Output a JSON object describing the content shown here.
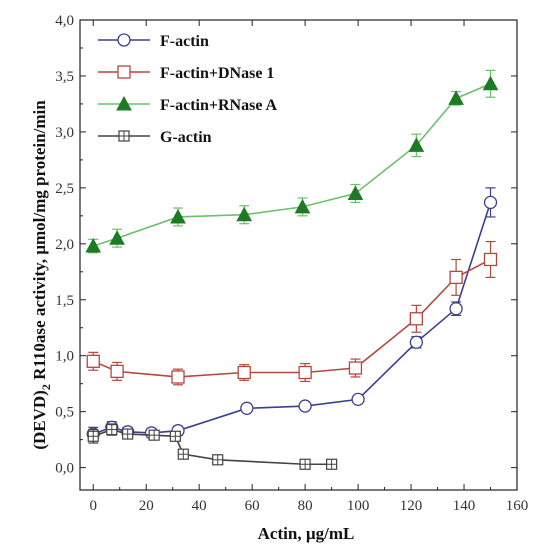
{
  "chart_data": {
    "type": "line",
    "title": "",
    "xlabel": "Actin, µg/mL",
    "ylabel_main": "(DEVD)",
    "ylabel_sub": "2",
    "ylabel_rest": " R110ase activity, µmol/mg protein/min",
    "xlim": [
      -5,
      160
    ],
    "ylim": [
      -0.2,
      4.0
    ],
    "x_ticks": [
      "0",
      "20",
      "40",
      "60",
      "80",
      "100",
      "120",
      "140",
      "160"
    ],
    "y_ticks": [
      "0,0",
      "0,5",
      "1,0",
      "1,5",
      "2,0",
      "2,5",
      "3,0",
      "3,5",
      "4,0"
    ],
    "x_tick_values": [
      0,
      20,
      40,
      60,
      80,
      100,
      120,
      140,
      160
    ],
    "y_tick_values": [
      0,
      0.5,
      1.0,
      1.5,
      2.0,
      2.5,
      3.0,
      3.5,
      4.0
    ],
    "legend_position": "top-left",
    "series": [
      {
        "name": "F-actin",
        "color": "#3a3f8f",
        "marker": "circle-open",
        "x": [
          0,
          7,
          13,
          22,
          32,
          58,
          80,
          100,
          122,
          137,
          150
        ],
        "y": [
          0.3,
          0.36,
          0.32,
          0.31,
          0.33,
          0.53,
          0.55,
          0.61,
          1.12,
          1.42,
          2.37
        ],
        "err": [
          0.06,
          0.05,
          0.04,
          0.04,
          0.04,
          0.03,
          0.03,
          0.03,
          0.05,
          0.06,
          0.13
        ]
      },
      {
        "name": "F-actin+DNase 1",
        "color": "#b5473f",
        "marker": "square-open",
        "x": [
          0,
          9,
          32,
          57,
          80,
          99,
          122,
          137,
          150
        ],
        "y": [
          0.95,
          0.86,
          0.81,
          0.85,
          0.85,
          0.89,
          1.33,
          1.7,
          1.86
        ],
        "err": [
          0.08,
          0.08,
          0.07,
          0.07,
          0.08,
          0.08,
          0.12,
          0.16,
          0.16
        ]
      },
      {
        "name": "F-actin+RNase A",
        "color": "#6cc16a",
        "marker": "triangle-filled",
        "x": [
          0,
          9,
          32,
          57,
          79,
          99,
          122,
          137,
          150
        ],
        "y": [
          1.98,
          2.05,
          2.24,
          2.26,
          2.33,
          2.45,
          2.88,
          3.3,
          3.43
        ],
        "err": [
          0.06,
          0.08,
          0.08,
          0.08,
          0.08,
          0.08,
          0.1,
          0.06,
          0.12
        ]
      },
      {
        "name": "G-actin",
        "color": "#444444",
        "marker": "square-crossed",
        "x": [
          0,
          7,
          13,
          23,
          31,
          34,
          47,
          80,
          90
        ],
        "y": [
          0.28,
          0.34,
          0.3,
          0.29,
          0.28,
          0.12,
          0.07,
          0.03,
          0.03
        ],
        "err": [
          0.06,
          0.05,
          0.04,
          0.04,
          0.03,
          0.02,
          0.02,
          0.02,
          0.02
        ]
      }
    ]
  }
}
